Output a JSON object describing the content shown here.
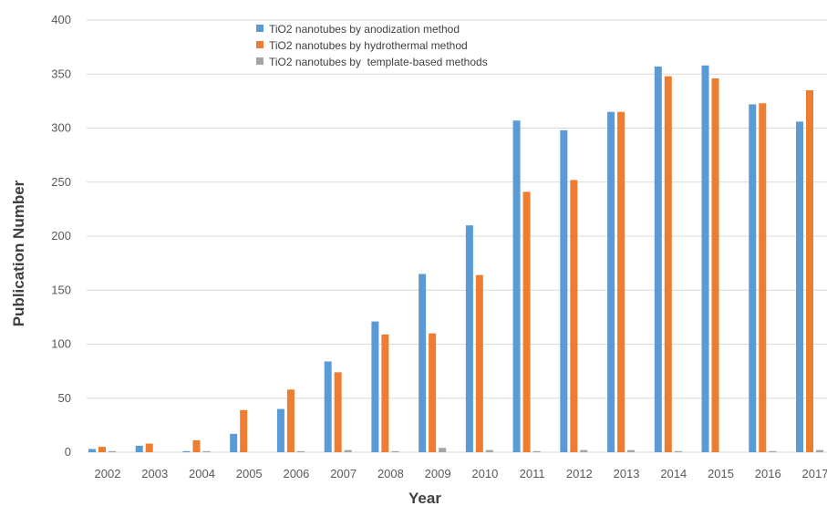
{
  "chart_data": {
    "type": "bar",
    "title": "",
    "xlabel": "Year",
    "ylabel": "Publication Number",
    "categories": [
      "2002",
      "2003",
      "2004",
      "2005",
      "2006",
      "2007",
      "2008",
      "2009",
      "2010",
      "2011",
      "2012",
      "2013",
      "2014",
      "2015",
      "2016",
      "2017"
    ],
    "ylim": [
      0,
      400
    ],
    "yticks": [
      0,
      50,
      100,
      150,
      200,
      250,
      300,
      350,
      400
    ],
    "grid": true,
    "legend_position": "top-center",
    "series": [
      {
        "name": "TiO2 nanotubes by anodization method",
        "color": "#5B9BD5",
        "values": [
          3,
          6,
          1,
          17,
          40,
          84,
          121,
          165,
          210,
          307,
          298,
          315,
          357,
          358,
          322,
          306
        ]
      },
      {
        "name": "TiO2 nanotubes by hydrothermal method",
        "color": "#ED7D31",
        "values": [
          5,
          8,
          11,
          39,
          58,
          74,
          109,
          110,
          164,
          241,
          252,
          315,
          348,
          346,
          323,
          335
        ]
      },
      {
        "name": "TiO2 nanotubes by  template-based methods",
        "color": "#A5A5A5",
        "values": [
          1,
          0,
          1,
          0,
          1,
          2,
          1,
          4,
          2,
          1,
          2,
          2,
          1,
          0,
          1,
          2
        ]
      }
    ]
  }
}
